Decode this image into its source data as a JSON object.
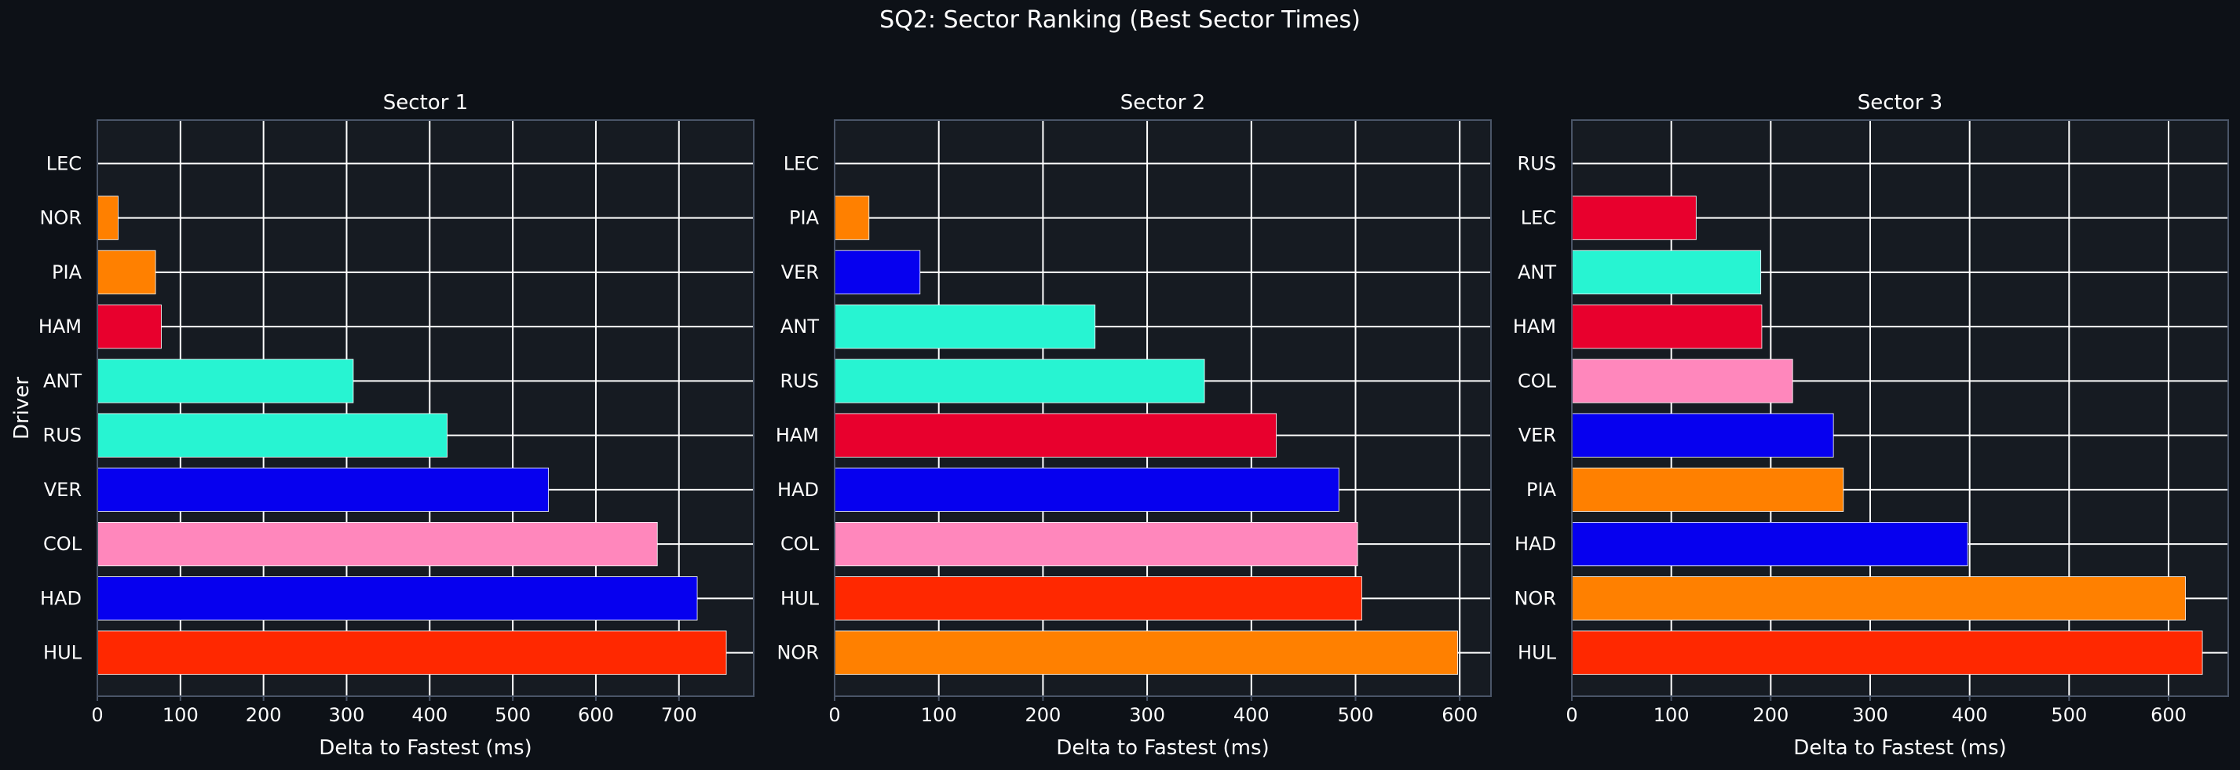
{
  "figure_title": "SQ2: Sector Ranking (Best Sector Times)",
  "colors": {
    "background": "#0d1117",
    "plot_background": "#161b22",
    "grid": "#ffffff",
    "spine": "#4a5568",
    "text": "#ffffff"
  },
  "chart_data": [
    {
      "type": "bar",
      "orientation": "horizontal",
      "title": "Sector 1",
      "xlabel": "Delta to Fastest (ms)",
      "ylabel": "Driver",
      "xlim": [
        0,
        790
      ],
      "xticks": [
        0,
        100,
        200,
        300,
        400,
        500,
        600,
        700
      ],
      "grid": true,
      "categories": [
        "LEC",
        "NOR",
        "PIA",
        "HAM",
        "ANT",
        "RUS",
        "VER",
        "COL",
        "HAD",
        "HUL"
      ],
      "values": [
        0,
        25,
        70,
        77,
        308,
        421,
        543,
        674,
        722,
        757
      ],
      "bar_colors": [
        "#ff8000",
        "#ff8000",
        "#ff8000",
        "#e8002d",
        "#27f4d2",
        "#27f4d2",
        "#0600ef",
        "#ff87bc",
        "#0600ef",
        "#ff2800"
      ]
    },
    {
      "type": "bar",
      "orientation": "horizontal",
      "title": "Sector 2",
      "xlabel": "Delta to Fastest (ms)",
      "ylabel": "",
      "xlim": [
        0,
        630
      ],
      "xticks": [
        0,
        100,
        200,
        300,
        400,
        500,
        600
      ],
      "grid": true,
      "categories": [
        "LEC",
        "PIA",
        "VER",
        "ANT",
        "RUS",
        "HAM",
        "HAD",
        "COL",
        "HUL",
        "NOR"
      ],
      "values": [
        0,
        33,
        82,
        250,
        355,
        424,
        484,
        502,
        506,
        598
      ],
      "bar_colors": [
        "#e8002d",
        "#ff8000",
        "#0600ef",
        "#27f4d2",
        "#27f4d2",
        "#e8002d",
        "#0600ef",
        "#ff87bc",
        "#ff2800",
        "#ff8000"
      ]
    },
    {
      "type": "bar",
      "orientation": "horizontal",
      "title": "Sector 3",
      "xlabel": "Delta to Fastest (ms)",
      "ylabel": "",
      "xlim": [
        0,
        660
      ],
      "xticks": [
        0,
        100,
        200,
        300,
        400,
        500,
        600
      ],
      "grid": true,
      "categories": [
        "RUS",
        "LEC",
        "ANT",
        "HAM",
        "COL",
        "VER",
        "PIA",
        "HAD",
        "NOR",
        "HUL"
      ],
      "values": [
        0,
        125,
        190,
        191,
        222,
        263,
        273,
        398,
        617,
        634
      ],
      "bar_colors": [
        "#27f4d2",
        "#e8002d",
        "#27f4d2",
        "#e8002d",
        "#ff87bc",
        "#0600ef",
        "#ff8000",
        "#0600ef",
        "#ff8000",
        "#ff2800"
      ]
    }
  ]
}
